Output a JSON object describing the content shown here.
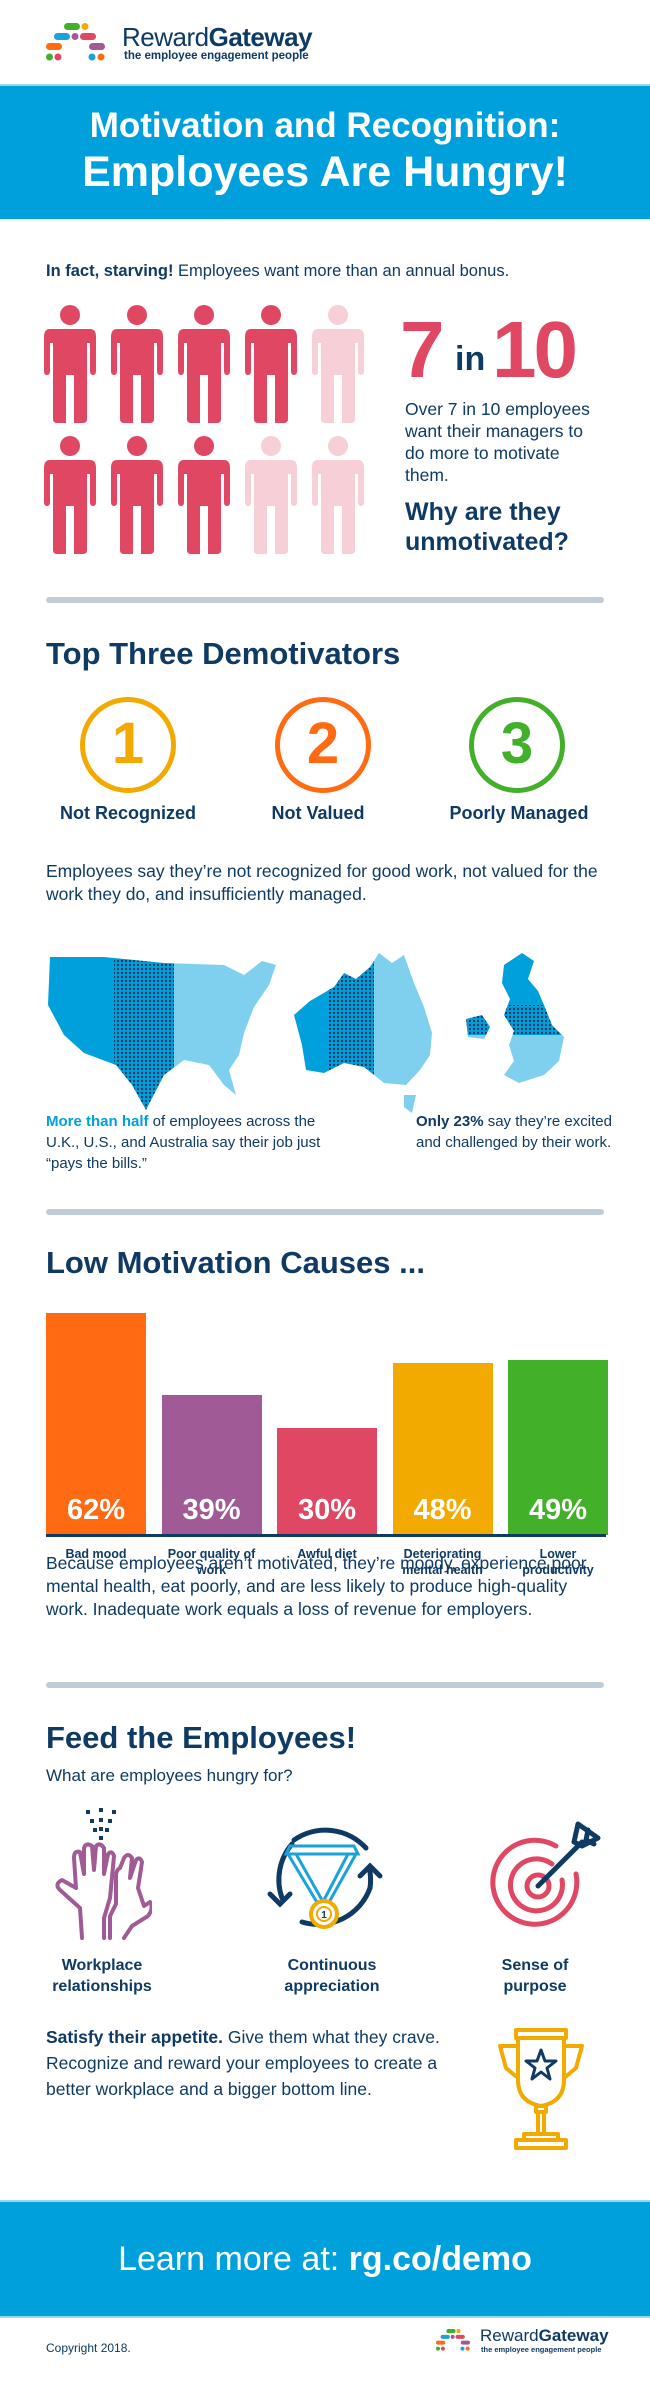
{
  "header": {
    "brand_regular": "Reward",
    "brand_bold": "Gateway",
    "tagline": "the employee engagement people"
  },
  "banner": {
    "line1": "Motivation and Recognition:",
    "line2": "Employees Are Hungry!"
  },
  "intro": {
    "bold": "In fact, starving!",
    "text": " Employees want more than an annual bonus."
  },
  "stat": {
    "num_a": "7",
    "in": "in",
    "num_b": "10",
    "description": "Over 7 in 10 employees want their managers to do more to motivate them.",
    "question": "Why are they unmotivated?",
    "people_total": 10,
    "people_highlighted": 7,
    "highlight_color": "#e04763",
    "dim_color": "#f6cfd7"
  },
  "demotivators": {
    "title": "Top Three Demotivators",
    "items": [
      {
        "number": "1",
        "label": "Not Recognized",
        "color": "#f2a900"
      },
      {
        "number": "2",
        "label": "Not Valued",
        "color": "#ff6a13"
      },
      {
        "number": "3",
        "label": "Poorly Managed",
        "color": "#43b02a"
      }
    ],
    "summary": "Employees say they’re not recognized for good work, not valued for the work they do, and insufficiently managed."
  },
  "maps": {
    "countries": [
      "United States",
      "Australia",
      "United Kingdom"
    ],
    "left_note_highlight": "More than half",
    "left_note_text": " of employees across the U.K., U.S., and Australia say their job just “pays the bills.”",
    "right_note_bold": "Only 23%",
    "right_note_text": " say they’re excited and challenged by their work."
  },
  "causes": {
    "title": "Low Motivation Causes ...",
    "summary": "Because employees aren’t motivated, they’re moody, experience poor mental health, eat poorly, and are less likely to produce high-quality work. Inadequate work equals a loss of revenue for employers."
  },
  "chart_data": {
    "type": "bar",
    "title": "Low Motivation Causes ...",
    "categories": [
      "Bad mood",
      "Poor quality of work",
      "Awful diet",
      "Deteriorating mental health",
      "Lower productivity"
    ],
    "values": [
      62,
      39,
      30,
      48,
      49
    ],
    "labels": [
      "62%",
      "39%",
      "30%",
      "48%",
      "49%"
    ],
    "colors": [
      "#ff6a13",
      "#a05a95",
      "#e04763",
      "#f2a900",
      "#43b02a"
    ],
    "xlabel": "",
    "ylabel": "",
    "unit": "%",
    "grid": false,
    "legend": "none"
  },
  "feed": {
    "title": "Feed the Employees!",
    "subtitle": "What are employees hungry for?",
    "items": [
      {
        "icon": "high-five-icon",
        "label_line1": "Workplace",
        "label_line2": "relationships"
      },
      {
        "icon": "medal-cycle-icon",
        "label_line1": "Continuous",
        "label_line2": "appreciation"
      },
      {
        "icon": "target-arrow-icon",
        "label_line1": "Sense of",
        "label_line2": "purpose"
      }
    ],
    "satisfy_bold": "Satisfy their appetite.",
    "satisfy_text": " Give them what they crave. Recognize and reward your employees to create a better workplace and a bigger bottom line.",
    "trophy_icon": "trophy-star-icon"
  },
  "cta": {
    "prefix": "Learn more at: ",
    "link": "rg.co/demo"
  },
  "footer": {
    "copyright": "Copyright 2018.",
    "brand_regular": "Reward",
    "brand_bold": "Gateway",
    "tagline": "the employee engagement people"
  },
  "colors": {
    "navy": "#0e3a63",
    "blue": "#00a0dd",
    "light_blue": "#7fd0ef",
    "divider": "#c0ccd6"
  }
}
